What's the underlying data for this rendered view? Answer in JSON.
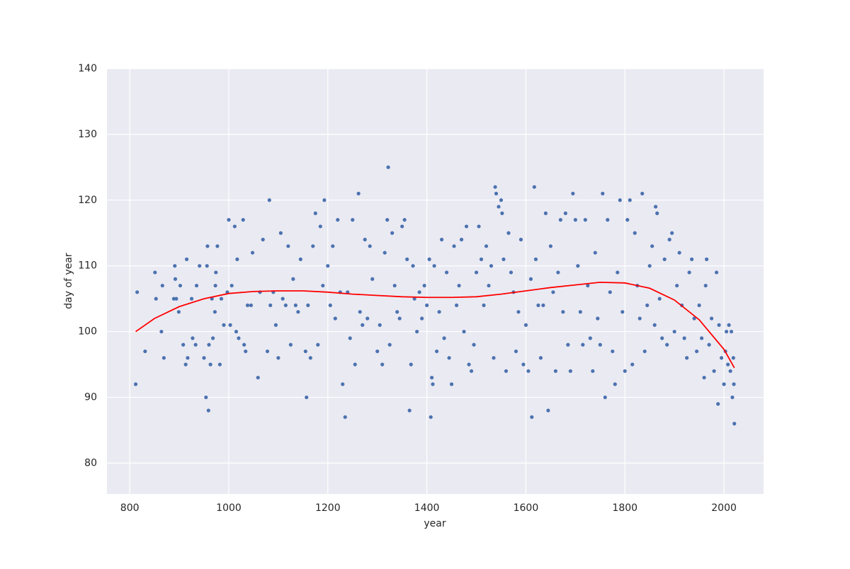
{
  "chart_data": {
    "type": "scatter",
    "xlabel": "year",
    "ylabel": "day of year",
    "xlim": [
      754,
      2080
    ],
    "ylim": [
      75.3,
      140
    ],
    "xticks": [
      800,
      1000,
      1200,
      1400,
      1600,
      1800,
      2000
    ],
    "yticks": [
      80,
      90,
      100,
      110,
      120,
      130,
      140
    ],
    "grid": true,
    "background": "#eaeaf2",
    "color": "#4c72b0",
    "x": [
      812,
      815,
      831,
      851,
      853,
      864,
      866,
      869,
      889,
      891,
      892,
      894,
      899,
      902,
      908,
      913,
      915,
      917,
      925,
      927,
      933,
      935,
      941,
      950,
      954,
      956,
      957,
      959,
      960,
      963,
      966,
      968,
      972,
      973,
      974,
      977,
      982,
      985,
      990,
      997,
      1000,
      1003,
      1006,
      1012,
      1015,
      1017,
      1020,
      1029,
      1031,
      1034,
      1038,
      1045,
      1048,
      1059,
      1063,
      1069,
      1078,
      1082,
      1084,
      1090,
      1095,
      1100,
      1105,
      1109,
      1115,
      1120,
      1125,
      1130,
      1135,
      1140,
      1145,
      1155,
      1157,
      1160,
      1165,
      1170,
      1175,
      1180,
      1185,
      1190,
      1193,
      1200,
      1205,
      1210,
      1215,
      1220,
      1225,
      1230,
      1235,
      1240,
      1245,
      1250,
      1255,
      1262,
      1265,
      1270,
      1275,
      1280,
      1285,
      1290,
      1300,
      1305,
      1310,
      1315,
      1320,
      1322,
      1325,
      1330,
      1335,
      1340,
      1345,
      1350,
      1355,
      1360,
      1365,
      1368,
      1372,
      1375,
      1380,
      1385,
      1390,
      1395,
      1400,
      1405,
      1408,
      1410,
      1412,
      1415,
      1420,
      1425,
      1430,
      1435,
      1440,
      1445,
      1450,
      1455,
      1460,
      1465,
      1470,
      1475,
      1480,
      1485,
      1490,
      1495,
      1500,
      1505,
      1510,
      1515,
      1520,
      1525,
      1530,
      1535,
      1538,
      1540,
      1545,
      1550,
      1552,
      1555,
      1560,
      1565,
      1570,
      1575,
      1580,
      1585,
      1590,
      1595,
      1600,
      1605,
      1610,
      1612,
      1617,
      1620,
      1625,
      1630,
      1635,
      1640,
      1645,
      1650,
      1655,
      1660,
      1665,
      1670,
      1675,
      1680,
      1685,
      1690,
      1695,
      1700,
      1705,
      1710,
      1715,
      1720,
      1725,
      1730,
      1735,
      1740,
      1745,
      1750,
      1755,
      1760,
      1765,
      1770,
      1775,
      1780,
      1785,
      1790,
      1795,
      1800,
      1805,
      1810,
      1815,
      1820,
      1825,
      1830,
      1835,
      1840,
      1845,
      1850,
      1855,
      1860,
      1862,
      1865,
      1870,
      1875,
      1880,
      1885,
      1890,
      1895,
      1900,
      1905,
      1910,
      1915,
      1920,
      1925,
      1930,
      1935,
      1940,
      1945,
      1950,
      1955,
      1960,
      1963,
      1965,
      1970,
      1975,
      1980,
      1985,
      1988,
      1990,
      1995,
      2000,
      2003,
      2005,
      2008,
      2010,
      2013,
      2015,
      2017,
      2019,
      2020,
      2021
    ],
    "values": [
      92,
      106,
      97,
      109,
      105,
      100,
      107,
      96,
      105,
      110,
      108,
      105,
      103,
      107,
      98,
      95,
      111,
      96,
      105,
      99,
      98,
      107,
      110,
      96,
      90,
      110,
      113,
      88,
      98,
      95,
      105,
      99,
      103,
      107,
      109,
      113,
      95,
      105,
      101,
      106,
      117,
      101,
      107,
      116,
      100,
      111,
      99,
      117,
      98,
      97,
      104,
      104,
      112,
      93,
      106,
      114,
      97,
      120,
      104,
      106,
      101,
      96,
      115,
      105,
      104,
      113,
      98,
      108,
      104,
      103,
      111,
      97,
      90,
      104,
      96,
      113,
      118,
      98,
      116,
      107,
      120,
      110,
      104,
      113,
      102,
      117,
      106,
      92,
      87,
      106,
      99,
      117,
      95,
      121,
      103,
      101,
      114,
      102,
      113,
      108,
      97,
      101,
      95,
      112,
      117,
      125,
      98,
      115,
      107,
      103,
      102,
      116,
      117,
      111,
      88,
      95,
      110,
      105,
      100,
      106,
      102,
      107,
      104,
      111,
      87,
      93,
      92,
      110,
      97,
      103,
      114,
      99,
      109,
      96,
      92,
      113,
      104,
      107,
      114,
      100,
      116,
      95,
      94,
      98,
      109,
      116,
      111,
      104,
      113,
      107,
      110,
      96,
      122,
      121,
      119,
      120,
      118,
      111,
      94,
      115,
      109,
      106,
      97,
      103,
      114,
      95,
      101,
      94,
      108,
      87,
      122,
      111,
      104,
      96,
      104,
      118,
      88,
      113,
      106,
      94,
      109,
      117,
      103,
      118,
      98,
      94,
      121,
      117,
      110,
      103,
      98,
      117,
      107,
      99,
      94,
      112,
      102,
      98,
      121,
      90,
      117,
      106,
      97,
      92,
      109,
      120,
      103,
      94,
      117,
      120,
      95,
      115,
      107,
      102,
      121,
      97,
      104,
      110,
      113,
      101,
      119,
      118,
      105,
      99,
      111,
      98,
      114,
      115,
      100,
      107,
      112,
      104,
      99,
      96,
      109,
      111,
      102,
      97,
      104,
      99,
      93,
      107,
      111,
      98,
      102,
      94,
      109,
      89,
      101,
      96,
      92,
      97,
      100,
      95,
      101,
      94,
      100,
      90,
      96,
      92,
      86
    ],
    "fit": {
      "color": "#ff0000",
      "x": [
        812,
        850,
        900,
        950,
        1000,
        1050,
        1100,
        1150,
        1200,
        1250,
        1300,
        1350,
        1400,
        1450,
        1500,
        1550,
        1600,
        1650,
        1700,
        1750,
        1800,
        1850,
        1900,
        1950,
        2000,
        2021
      ],
      "values": [
        100,
        102,
        103.8,
        105,
        105.8,
        106.1,
        106.2,
        106.2,
        106,
        105.7,
        105.5,
        105.3,
        105.2,
        105.2,
        105.3,
        105.7,
        106.2,
        106.7,
        107.1,
        107.5,
        107.4,
        106.6,
        104.8,
        101.8,
        97.3,
        94.5
      ]
    }
  }
}
